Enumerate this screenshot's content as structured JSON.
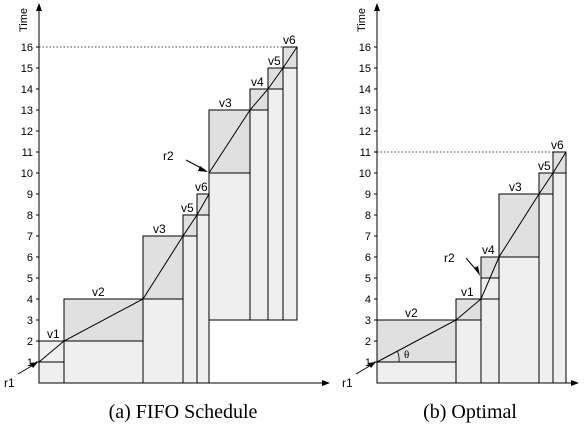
{
  "panels": [
    {
      "id": "fifo",
      "caption": "(a) FIFO Schedule",
      "y_axis_label": "Time",
      "ticks": [
        "1",
        "2",
        "3",
        "4",
        "5",
        "6",
        "7",
        "8",
        "9",
        "10",
        "11",
        "12",
        "13",
        "14",
        "15",
        "16"
      ],
      "max_time_level": 16,
      "rect_labels": [
        "v1",
        "v2",
        "v3",
        "v5",
        "v6",
        "v3",
        "v4",
        "v5",
        "v6"
      ],
      "arrow_labels": [
        "r1",
        "r2"
      ]
    },
    {
      "id": "optimal",
      "caption": "(b) Optimal",
      "y_axis_label": "Time",
      "ticks": [
        "1",
        "2",
        "3",
        "4",
        "5",
        "6",
        "7",
        "8",
        "9",
        "10",
        "11",
        "12",
        "13",
        "14",
        "15",
        "16"
      ],
      "max_time_level": 11,
      "rect_labels": [
        "v2",
        "v1",
        "v4",
        "v3",
        "v5",
        "v6"
      ],
      "arrow_labels": [
        "r1",
        "r2"
      ],
      "angle_label": "θ"
    }
  ],
  "colors": {
    "fill": "#efefef",
    "line": "#000000",
    "guide": "#000000"
  }
}
